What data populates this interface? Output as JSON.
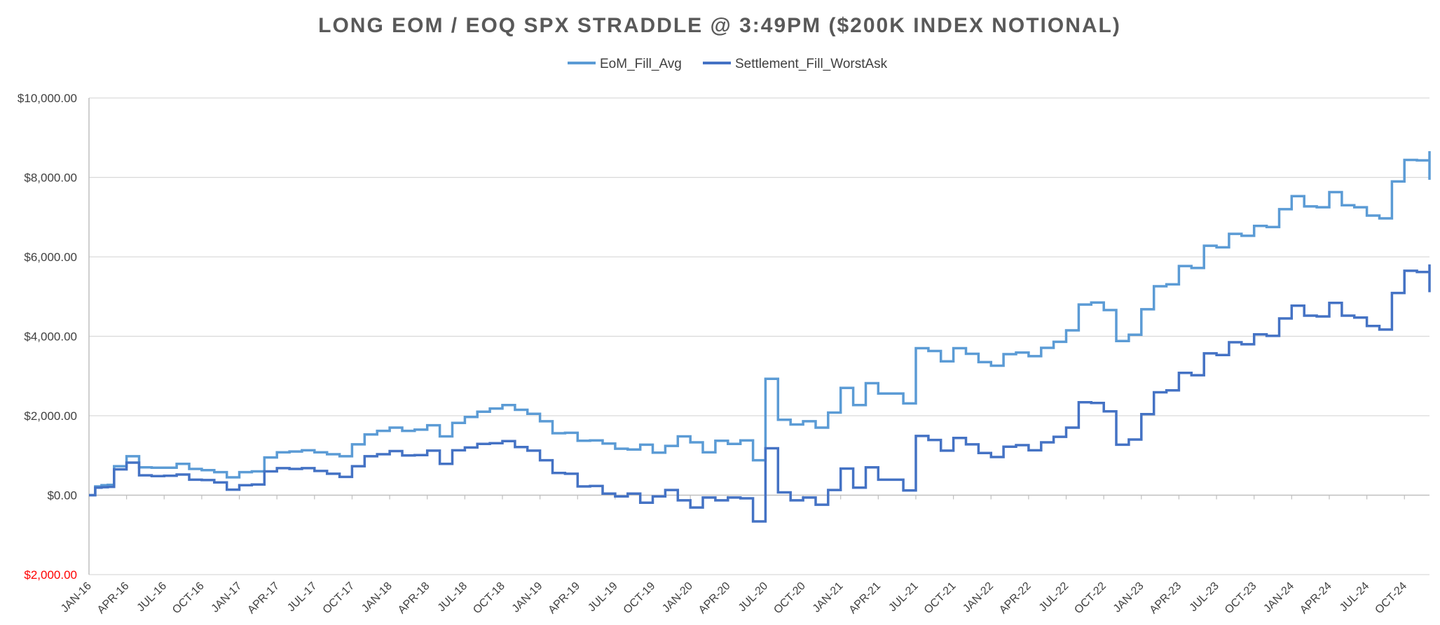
{
  "chart_data": {
    "type": "line",
    "title": "LONG EOM / EOQ SPX STRADDLE @ 3:49PM ($200K INDEX NOTIONAL)",
    "xlabel": "",
    "ylabel": "",
    "ylim": [
      -2000,
      10000
    ],
    "yticks": [
      10000,
      8000,
      6000,
      4000,
      2000,
      0,
      -2000
    ],
    "ytick_labels": [
      "$10,000.00",
      "$8,000.00",
      "$6,000.00",
      "$4,000.00",
      "$2,000.00",
      "$0.00",
      "$2,000.00"
    ],
    "ytick_colors": [
      "#404040",
      "#404040",
      "#404040",
      "#404040",
      "#404040",
      "#404040",
      "#ff0000"
    ],
    "x_tick_labels": [
      "JAN-16",
      "APR-16",
      "JUL-16",
      "OCT-16",
      "JAN-17",
      "APR-17",
      "JUL-17",
      "OCT-17",
      "JAN-18",
      "APR-18",
      "JUL-18",
      "OCT-18",
      "JAN-19",
      "APR-19",
      "JUL-19",
      "OCT-19",
      "JAN-20",
      "APR-20",
      "JUL-20",
      "OCT-20",
      "JAN-21",
      "APR-21",
      "JUL-21",
      "OCT-21",
      "JAN-22",
      "APR-22",
      "JUL-22",
      "OCT-22",
      "JAN-23",
      "APR-23",
      "JUL-23",
      "OCT-23",
      "JAN-24",
      "APR-24",
      "JUL-24",
      "OCT-24"
    ],
    "x_range_months": [
      0,
      107
    ],
    "grid": true,
    "legend_position": "top",
    "step": true,
    "series": [
      {
        "name": "EoM_Fill_Avg",
        "color": "#5b9bd5",
        "points": [
          [
            0,
            0
          ],
          [
            0.5,
            220
          ],
          [
            1,
            250
          ],
          [
            1.5,
            260
          ],
          [
            2,
            730
          ],
          [
            3,
            980
          ],
          [
            4,
            700
          ],
          [
            5,
            690
          ],
          [
            6,
            690
          ],
          [
            7,
            790
          ],
          [
            8,
            660
          ],
          [
            9,
            630
          ],
          [
            10,
            580
          ],
          [
            11,
            450
          ],
          [
            12,
            580
          ],
          [
            13,
            600
          ],
          [
            14,
            950
          ],
          [
            15,
            1080
          ],
          [
            16,
            1100
          ],
          [
            17,
            1130
          ],
          [
            18,
            1080
          ],
          [
            19,
            1030
          ],
          [
            20,
            980
          ],
          [
            21,
            1280
          ],
          [
            22,
            1530
          ],
          [
            23,
            1620
          ],
          [
            24,
            1700
          ],
          [
            25,
            1620
          ],
          [
            26,
            1650
          ],
          [
            27,
            1760
          ],
          [
            28,
            1480
          ],
          [
            29,
            1820
          ],
          [
            30,
            1970
          ],
          [
            31,
            2100
          ],
          [
            32,
            2180
          ],
          [
            33,
            2270
          ],
          [
            34,
            2150
          ],
          [
            35,
            2050
          ],
          [
            36,
            1860
          ],
          [
            37,
            1560
          ],
          [
            38,
            1570
          ],
          [
            39,
            1370
          ],
          [
            40,
            1380
          ],
          [
            41,
            1300
          ],
          [
            42,
            1170
          ],
          [
            43,
            1150
          ],
          [
            44,
            1270
          ],
          [
            45,
            1070
          ],
          [
            46,
            1240
          ],
          [
            47,
            1480
          ],
          [
            48,
            1330
          ],
          [
            49,
            1080
          ],
          [
            50,
            1370
          ],
          [
            51,
            1290
          ],
          [
            52,
            1380
          ],
          [
            53,
            880
          ],
          [
            54,
            2930
          ],
          [
            55,
            1900
          ],
          [
            56,
            1780
          ],
          [
            57,
            1860
          ],
          [
            58,
            1700
          ],
          [
            59,
            2080
          ],
          [
            60,
            2700
          ],
          [
            61,
            2270
          ],
          [
            62,
            2820
          ],
          [
            63,
            2560
          ],
          [
            64,
            2560
          ],
          [
            65,
            2310
          ],
          [
            66,
            3700
          ],
          [
            67,
            3630
          ],
          [
            68,
            3370
          ],
          [
            69,
            3700
          ],
          [
            70,
            3560
          ],
          [
            71,
            3350
          ],
          [
            72,
            3260
          ],
          [
            73,
            3550
          ],
          [
            74,
            3590
          ],
          [
            75,
            3500
          ],
          [
            76,
            3710
          ],
          [
            77,
            3860
          ],
          [
            78,
            4150
          ],
          [
            79,
            4800
          ],
          [
            80,
            4850
          ],
          [
            81,
            4660
          ],
          [
            82,
            3880
          ],
          [
            83,
            4040
          ],
          [
            84,
            4680
          ],
          [
            85,
            5260
          ],
          [
            86,
            5310
          ],
          [
            87,
            5770
          ],
          [
            88,
            5720
          ],
          [
            89,
            6280
          ],
          [
            90,
            6240
          ],
          [
            91,
            6580
          ],
          [
            92,
            6530
          ],
          [
            93,
            6780
          ],
          [
            94,
            6750
          ],
          [
            95,
            7200
          ],
          [
            96,
            7530
          ],
          [
            97,
            7270
          ],
          [
            98,
            7250
          ],
          [
            99,
            7630
          ],
          [
            100,
            7300
          ],
          [
            101,
            7250
          ],
          [
            102,
            7040
          ],
          [
            103,
            6970
          ],
          [
            104,
            7900
          ],
          [
            105,
            8440
          ],
          [
            106,
            8430
          ],
          [
            107,
            7940
          ],
          [
            108,
            8460
          ],
          [
            109,
            8660
          ]
        ]
      },
      {
        "name": "Settlement_Fill_WorstAsk",
        "color": "#4472c4",
        "points": [
          [
            0,
            0
          ],
          [
            0.5,
            190
          ],
          [
            1,
            200
          ],
          [
            1.5,
            210
          ],
          [
            2,
            650
          ],
          [
            3,
            820
          ],
          [
            4,
            500
          ],
          [
            5,
            480
          ],
          [
            6,
            490
          ],
          [
            7,
            520
          ],
          [
            8,
            390
          ],
          [
            9,
            380
          ],
          [
            10,
            320
          ],
          [
            11,
            140
          ],
          [
            12,
            250
          ],
          [
            13,
            270
          ],
          [
            14,
            600
          ],
          [
            15,
            680
          ],
          [
            16,
            660
          ],
          [
            17,
            680
          ],
          [
            18,
            610
          ],
          [
            19,
            540
          ],
          [
            20,
            460
          ],
          [
            21,
            730
          ],
          [
            22,
            980
          ],
          [
            23,
            1030
          ],
          [
            24,
            1110
          ],
          [
            25,
            1000
          ],
          [
            26,
            1010
          ],
          [
            27,
            1120
          ],
          [
            28,
            790
          ],
          [
            29,
            1130
          ],
          [
            30,
            1200
          ],
          [
            31,
            1290
          ],
          [
            32,
            1310
          ],
          [
            33,
            1360
          ],
          [
            34,
            1210
          ],
          [
            35,
            1120
          ],
          [
            36,
            880
          ],
          [
            37,
            560
          ],
          [
            38,
            540
          ],
          [
            39,
            220
          ],
          [
            40,
            230
          ],
          [
            41,
            40
          ],
          [
            42,
            -30
          ],
          [
            43,
            40
          ],
          [
            44,
            -190
          ],
          [
            45,
            -30
          ],
          [
            46,
            130
          ],
          [
            47,
            -130
          ],
          [
            48,
            -310
          ],
          [
            49,
            -60
          ],
          [
            50,
            -130
          ],
          [
            51,
            -60
          ],
          [
            52,
            -80
          ],
          [
            53,
            -660
          ],
          [
            54,
            1180
          ],
          [
            55,
            70
          ],
          [
            56,
            -130
          ],
          [
            57,
            -60
          ],
          [
            58,
            -240
          ],
          [
            59,
            130
          ],
          [
            60,
            670
          ],
          [
            61,
            190
          ],
          [
            62,
            700
          ],
          [
            63,
            390
          ],
          [
            64,
            390
          ],
          [
            65,
            120
          ],
          [
            66,
            1490
          ],
          [
            67,
            1390
          ],
          [
            68,
            1120
          ],
          [
            69,
            1440
          ],
          [
            70,
            1280
          ],
          [
            71,
            1060
          ],
          [
            72,
            960
          ],
          [
            73,
            1220
          ],
          [
            74,
            1260
          ],
          [
            75,
            1130
          ],
          [
            76,
            1330
          ],
          [
            77,
            1470
          ],
          [
            78,
            1700
          ],
          [
            79,
            2340
          ],
          [
            80,
            2320
          ],
          [
            81,
            2110
          ],
          [
            82,
            1270
          ],
          [
            83,
            1400
          ],
          [
            84,
            2040
          ],
          [
            85,
            2590
          ],
          [
            86,
            2640
          ],
          [
            87,
            3080
          ],
          [
            88,
            3020
          ],
          [
            89,
            3570
          ],
          [
            90,
            3530
          ],
          [
            91,
            3850
          ],
          [
            92,
            3800
          ],
          [
            93,
            4050
          ],
          [
            94,
            4010
          ],
          [
            95,
            4450
          ],
          [
            96,
            4770
          ],
          [
            97,
            4520
          ],
          [
            98,
            4500
          ],
          [
            99,
            4840
          ],
          [
            100,
            4520
          ],
          [
            101,
            4470
          ],
          [
            102,
            4260
          ],
          [
            103,
            4170
          ],
          [
            104,
            5090
          ],
          [
            105,
            5650
          ],
          [
            106,
            5620
          ],
          [
            107,
            5110
          ],
          [
            108,
            5620
          ],
          [
            109,
            5810
          ]
        ]
      }
    ]
  }
}
